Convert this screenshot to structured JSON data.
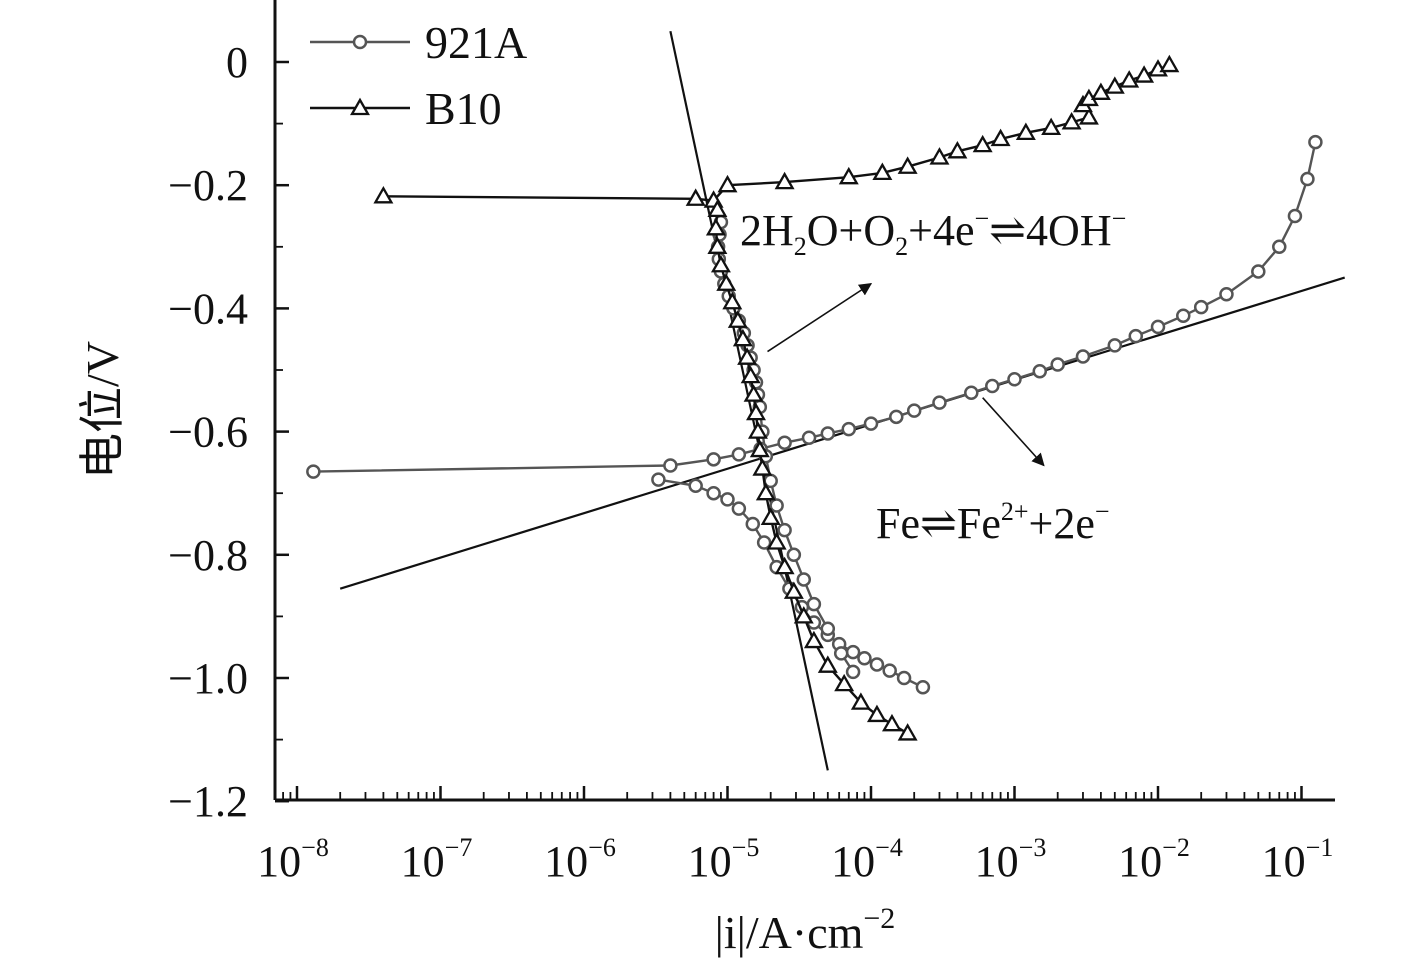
{
  "chart_data": {
    "type": "line",
    "title": "",
    "xlabel": "|i|/A·cm",
    "xlabel_sup": "−2",
    "ylabel": "电位/V",
    "xscale": "log",
    "xlim": [
      1e-08,
      0.2
    ],
    "ylim": [
      -1.2,
      0.1
    ],
    "x_ticks": [
      {
        "base": "10",
        "exp": "−8"
      },
      {
        "base": "10",
        "exp": "−7"
      },
      {
        "base": "10",
        "exp": "−6"
      },
      {
        "base": "10",
        "exp": "−5"
      },
      {
        "base": "10",
        "exp": "−4"
      },
      {
        "base": "10",
        "exp": "−3"
      },
      {
        "base": "10",
        "exp": "−2"
      },
      {
        "base": "10",
        "exp": "−1"
      }
    ],
    "y_ticks": [
      "0",
      "−0.2",
      "−0.4",
      "−0.6",
      "−0.8",
      "−1.0",
      "−1.2"
    ],
    "legend": {
      "position": "top-left"
    },
    "series": [
      {
        "name": "921A",
        "marker": "circle",
        "branches": [
          {
            "x": [
              1.3e-08,
              4e-06,
              8e-06,
              1.2e-05,
              1.7e-05,
              2.5e-05,
              3.7e-05,
              5e-05,
              7e-05,
              0.0001,
              0.00015,
              0.0002,
              0.0003,
              0.0005,
              0.0007,
              0.001,
              0.0015,
              0.002,
              0.003,
              0.005,
              0.007,
              0.01,
              0.015,
              0.02,
              0.03,
              0.05,
              0.07,
              0.09,
              0.11,
              0.125
            ],
            "y": [
              -0.665,
              -0.655,
              -0.645,
              -0.637,
              -0.628,
              -0.618,
              -0.61,
              -0.603,
              -0.596,
              -0.587,
              -0.576,
              -0.566,
              -0.553,
              -0.537,
              -0.526,
              -0.515,
              -0.502,
              -0.491,
              -0.478,
              -0.46,
              -0.445,
              -0.43,
              -0.412,
              -0.398,
              -0.377,
              -0.34,
              -0.3,
              -0.25,
              -0.19,
              -0.13
            ]
          },
          {
            "x": [
              3.3e-06,
              6e-06,
              8e-06,
              1e-05,
              1.2e-05,
              1.5e-05,
              1.8e-05,
              2.2e-05,
              2.7e-05,
              3.3e-05,
              4e-05,
              5e-05,
              6e-05,
              7.5e-05,
              9e-05,
              0.00011,
              0.000135,
              0.00017,
              0.00023
            ],
            "y": [
              -0.678,
              -0.688,
              -0.7,
              -0.71,
              -0.725,
              -0.75,
              -0.78,
              -0.82,
              -0.855,
              -0.885,
              -0.91,
              -0.93,
              -0.945,
              -0.958,
              -0.968,
              -0.978,
              -0.988,
              -1.0,
              -1.015
            ]
          },
          {
            "x": [
              9e-06,
              8.8e-06,
              8.6e-06,
              8.7e-06,
              9e-06,
              9.5e-06,
              1.02e-05,
              1.1e-05,
              1.2e-05,
              1.3e-05,
              1.38e-05,
              1.45e-05,
              1.52e-05,
              1.58e-05,
              1.63e-05,
              1.68e-05,
              1.75e-05,
              1.85e-05,
              2e-05,
              2.2e-05,
              2.5e-05,
              2.9e-05,
              3.4e-05,
              4e-05,
              5e-05,
              6.2e-05,
              7.5e-05
            ],
            "y": [
              -0.26,
              -0.28,
              -0.3,
              -0.32,
              -0.34,
              -0.36,
              -0.38,
              -0.4,
              -0.42,
              -0.44,
              -0.46,
              -0.48,
              -0.5,
              -0.52,
              -0.54,
              -0.56,
              -0.6,
              -0.64,
              -0.68,
              -0.72,
              -0.76,
              -0.8,
              -0.84,
              -0.88,
              -0.92,
              -0.96,
              -0.99
            ]
          }
        ]
      },
      {
        "name": "B10",
        "marker": "triangle",
        "branches": [
          {
            "x": [
              4e-08,
              6e-06,
              8e-06,
              1e-05,
              2.5e-05,
              7e-05,
              0.00012,
              0.00018,
              0.0003,
              0.0004,
              0.0006,
              0.0008,
              0.0012,
              0.0018,
              0.0025,
              0.0033
            ],
            "y": [
              -0.218,
              -0.222,
              -0.225,
              -0.2,
              -0.195,
              -0.187,
              -0.18,
              -0.17,
              -0.155,
              -0.145,
              -0.135,
              -0.125,
              -0.115,
              -0.107,
              -0.098,
              -0.09
            ]
          },
          {
            "x": [
              0.003,
              0.0033,
              0.004,
              0.005,
              0.0063,
              0.008,
              0.01,
              0.012
            ],
            "y": [
              -0.07,
              -0.06,
              -0.05,
              -0.04,
              -0.03,
              -0.022,
              -0.012,
              -0.005
            ]
          },
          {
            "x": [
              8.5e-06,
              8.3e-06,
              8.5e-06,
              9e-06,
              9.8e-06,
              1.08e-05,
              1.18e-05,
              1.28e-05,
              1.37e-05,
              1.45e-05,
              1.52e-05,
              1.58e-05,
              1.63e-05,
              1.68e-05,
              1.75e-05,
              1.85e-05,
              2e-05,
              2.2e-05,
              2.5e-05,
              2.9e-05,
              3.4e-05,
              4e-05,
              5e-05,
              6.5e-05,
              8.5e-05,
              0.00011,
              0.00014,
              0.00018
            ],
            "y": [
              -0.24,
              -0.27,
              -0.3,
              -0.33,
              -0.36,
              -0.39,
              -0.42,
              -0.45,
              -0.48,
              -0.51,
              -0.54,
              -0.57,
              -0.6,
              -0.63,
              -0.66,
              -0.7,
              -0.74,
              -0.78,
              -0.82,
              -0.86,
              -0.9,
              -0.94,
              -0.98,
              -1.01,
              -1.04,
              -1.06,
              -1.075,
              -1.09
            ]
          }
        ]
      }
    ],
    "tafel_lines": [
      {
        "name": "cathodic",
        "x": [
          4e-06,
          5e-05
        ],
        "y": [
          0.05,
          -1.15
        ]
      },
      {
        "name": "anodic",
        "x": [
          2e-08,
          0.2
        ],
        "y": [
          -0.855,
          -0.35
        ]
      }
    ],
    "annotations": [
      {
        "name": "oxygen-reaction",
        "parts": [
          {
            "t": "2H"
          },
          {
            "t": "2",
            "k": "sub"
          },
          {
            "t": "O+O"
          },
          {
            "t": "2",
            "k": "sub"
          },
          {
            "t": "+4e"
          },
          {
            "t": "−",
            "k": "sup"
          },
          {
            "t": "⇌4OH"
          },
          {
            "t": "−",
            "k": "sup"
          }
        ],
        "arrow_from": [
          1.9e-05,
          -0.47
        ],
        "arrow_to": [
          0.0001,
          -0.36
        ]
      },
      {
        "name": "iron-reaction",
        "parts": [
          {
            "t": "Fe⇌Fe"
          },
          {
            "t": "2+",
            "k": "sup"
          },
          {
            "t": "+2e"
          },
          {
            "t": "−",
            "k": "sup"
          }
        ],
        "arrow_from": [
          0.0006,
          -0.545
        ],
        "arrow_to": [
          0.0016,
          -0.655
        ]
      }
    ]
  }
}
